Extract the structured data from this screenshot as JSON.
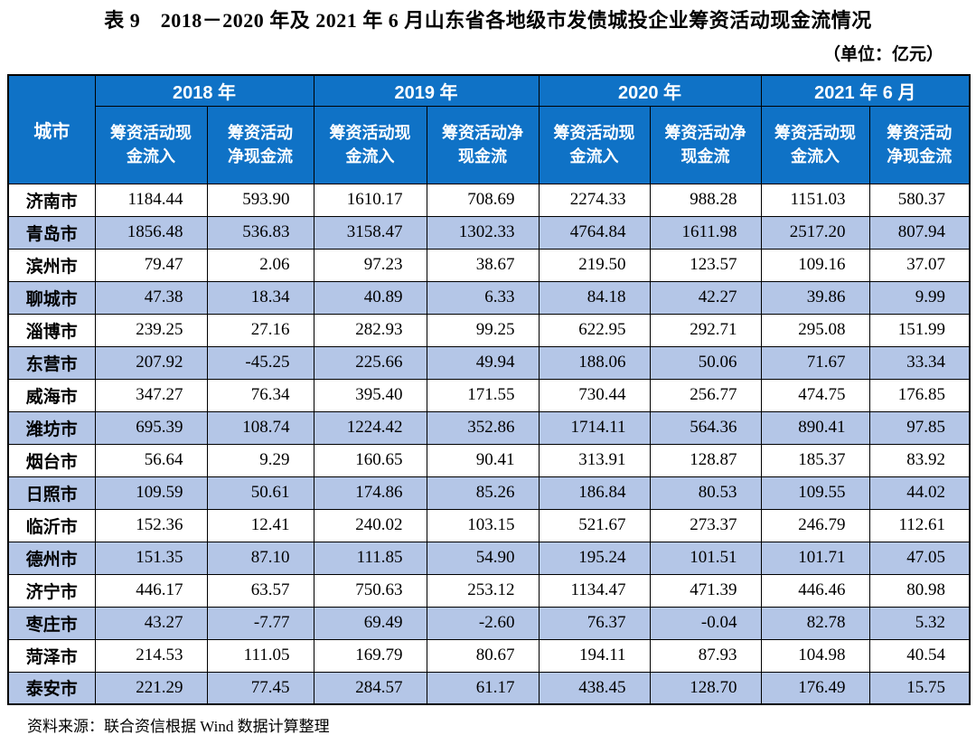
{
  "page": {
    "title": "表 9　2018－2020 年及 2021 年 6 月山东省各地级市发债城投企业筹资活动现金流情况",
    "unit_note": "（单位：亿元）",
    "source_note": "资料来源：联合资信根据 Wind 数据计算整理"
  },
  "colors": {
    "header_bg": "#0F72C6",
    "header_text": "#FFFFFF",
    "stripe_bg": "#B4C6E7",
    "row_bg": "#FFFFFF",
    "border": "#000000",
    "text": "#000000"
  },
  "chart_data": {
    "type": "table",
    "title": "2018－2020 年及 2021 年 6 月山东省各地级市发债城投企业筹资活动现金流情况",
    "unit": "亿元",
    "city_column_header": "城市",
    "year_groups": [
      {
        "label": "2018 年",
        "columns": [
          "筹资活动现金流入",
          "筹资活动净现金流"
        ]
      },
      {
        "label": "2019 年",
        "columns": [
          "筹资活动现金流入",
          "筹资活动净现金流"
        ]
      },
      {
        "label": "2020 年",
        "columns": [
          "筹资活动现金流入",
          "筹资活动净现金流"
        ]
      },
      {
        "label": "2021 年 6 月",
        "columns": [
          "筹资活动现金流入",
          "筹资活动净现金流"
        ]
      }
    ],
    "rows": [
      {
        "city": "济南市",
        "values": [
          1184.44,
          593.9,
          1610.17,
          708.69,
          2274.33,
          988.28,
          1151.03,
          580.37
        ]
      },
      {
        "city": "青岛市",
        "values": [
          1856.48,
          536.83,
          3158.47,
          1302.33,
          4764.84,
          1611.98,
          2517.2,
          807.94
        ]
      },
      {
        "city": "滨州市",
        "values": [
          79.47,
          2.06,
          97.23,
          38.67,
          219.5,
          123.57,
          109.16,
          37.07
        ]
      },
      {
        "city": "聊城市",
        "values": [
          47.38,
          18.34,
          40.89,
          6.33,
          84.18,
          42.27,
          39.86,
          9.99
        ]
      },
      {
        "city": "淄博市",
        "values": [
          239.25,
          27.16,
          282.93,
          99.25,
          622.95,
          292.71,
          295.08,
          151.99
        ]
      },
      {
        "city": "东营市",
        "values": [
          207.92,
          -45.25,
          225.66,
          49.94,
          188.06,
          50.06,
          71.67,
          33.34
        ]
      },
      {
        "city": "威海市",
        "values": [
          347.27,
          76.34,
          395.4,
          171.55,
          730.44,
          256.77,
          474.75,
          176.85
        ]
      },
      {
        "city": "潍坊市",
        "values": [
          695.39,
          108.74,
          1224.42,
          352.86,
          1714.11,
          564.36,
          890.41,
          97.85
        ]
      },
      {
        "city": "烟台市",
        "values": [
          56.64,
          9.29,
          160.65,
          90.41,
          313.91,
          128.87,
          185.37,
          83.92
        ]
      },
      {
        "city": "日照市",
        "values": [
          109.59,
          50.61,
          174.86,
          85.26,
          186.84,
          80.53,
          109.55,
          44.02
        ]
      },
      {
        "city": "临沂市",
        "values": [
          152.36,
          12.41,
          240.02,
          103.15,
          521.67,
          273.37,
          246.79,
          112.61
        ]
      },
      {
        "city": "德州市",
        "values": [
          151.35,
          87.1,
          111.85,
          54.9,
          195.24,
          101.51,
          101.71,
          47.05
        ]
      },
      {
        "city": "济宁市",
        "values": [
          446.17,
          63.57,
          750.63,
          253.12,
          1134.47,
          471.39,
          446.46,
          80.98
        ]
      },
      {
        "city": "枣庄市",
        "values": [
          43.27,
          -7.77,
          69.49,
          -2.6,
          76.37,
          -0.04,
          82.78,
          5.32
        ]
      },
      {
        "city": "菏泽市",
        "values": [
          214.53,
          111.05,
          169.79,
          80.67,
          194.11,
          87.93,
          104.98,
          40.54
        ]
      },
      {
        "city": "泰安市",
        "values": [
          221.29,
          77.45,
          284.57,
          61.17,
          438.45,
          128.7,
          176.49,
          15.75
        ]
      }
    ]
  }
}
